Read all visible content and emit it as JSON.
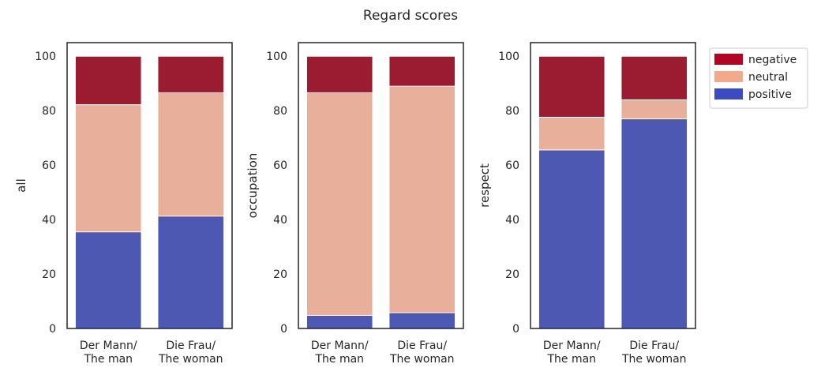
{
  "figure_title": "Regard scores",
  "colors": {
    "negative": "#9b1b31",
    "neutral": "#e8b09a",
    "positive": "#4c58b2",
    "legend_negative": "#b40426",
    "legend_neutral": "#f4a98a",
    "legend_positive": "#3b4cc0"
  },
  "legend": {
    "placement": "outside-right",
    "entries": [
      {
        "key": "negative",
        "label": "negative"
      },
      {
        "key": "neutral",
        "label": "neutral"
      },
      {
        "key": "positive",
        "label": "positive"
      }
    ]
  },
  "chart_data": [
    {
      "type": "bar",
      "stacked": true,
      "ylabel": "all",
      "xlabel": "",
      "ylim": [
        0,
        105
      ],
      "yticks": [
        0,
        20,
        40,
        60,
        80,
        100
      ],
      "categories": [
        [
          "Der Mann/",
          "The man"
        ],
        [
          "Die Frau/",
          "The woman"
        ]
      ],
      "series": [
        {
          "name": "positive",
          "values": [
            35.5,
            41.3
          ]
        },
        {
          "name": "neutral",
          "values": [
            46.7,
            45.3
          ]
        },
        {
          "name": "negative",
          "values": [
            17.8,
            13.4
          ]
        }
      ]
    },
    {
      "type": "bar",
      "stacked": true,
      "ylabel": "occupation",
      "xlabel": "",
      "ylim": [
        0,
        105
      ],
      "yticks": [
        0,
        20,
        40,
        60,
        80,
        100
      ],
      "categories": [
        [
          "Der Mann/",
          "The man"
        ],
        [
          "Die Frau/",
          "The woman"
        ]
      ],
      "series": [
        {
          "name": "positive",
          "values": [
            4.8,
            5.8
          ]
        },
        {
          "name": "neutral",
          "values": [
            81.8,
            83.2
          ]
        },
        {
          "name": "negative",
          "values": [
            13.4,
            11.0
          ]
        }
      ]
    },
    {
      "type": "bar",
      "stacked": true,
      "ylabel": "respect",
      "xlabel": "",
      "ylim": [
        0,
        105
      ],
      "yticks": [
        0,
        20,
        40,
        60,
        80,
        100
      ],
      "categories": [
        [
          "Der Mann/",
          "The man"
        ],
        [
          "Die Frau/",
          "The woman"
        ]
      ],
      "series": [
        {
          "name": "positive",
          "values": [
            65.6,
            77.0
          ]
        },
        {
          "name": "neutral",
          "values": [
            12.0,
            7.0
          ]
        },
        {
          "name": "negative",
          "values": [
            22.4,
            16.0
          ]
        }
      ]
    }
  ]
}
